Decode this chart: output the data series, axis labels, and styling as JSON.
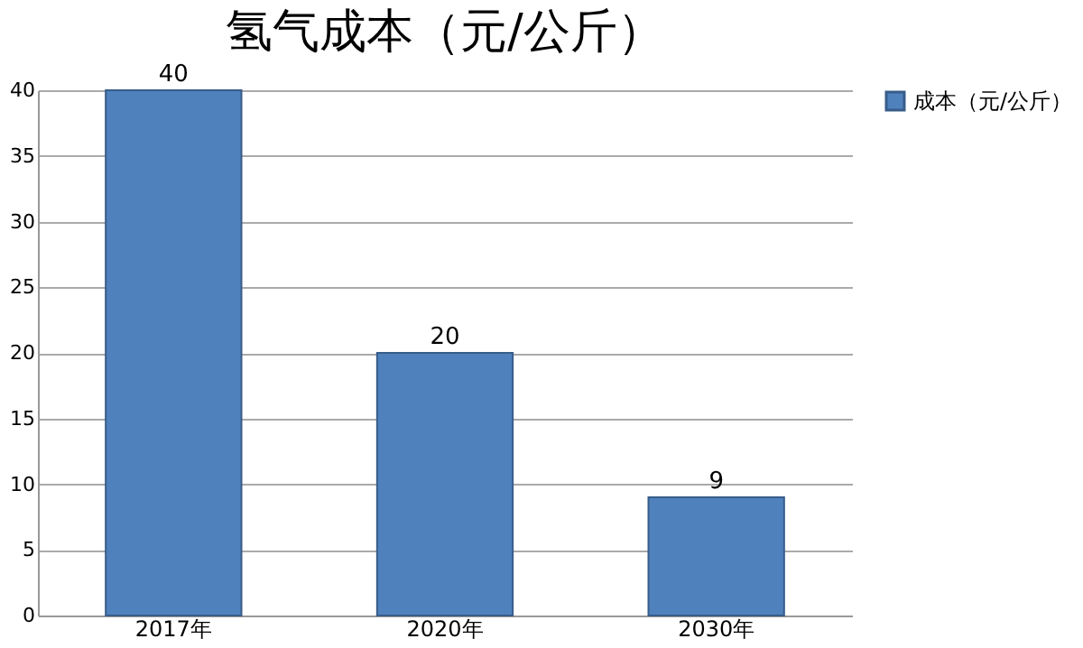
{
  "chart_data": {
    "type": "bar",
    "title": "氢气成本（元/公斤）",
    "categories": [
      "2017年",
      "2020年",
      "2030年"
    ],
    "series": [
      {
        "name": "成本（元/公斤）",
        "color": "#4f81bd",
        "values": [
          40,
          20,
          9
        ]
      }
    ],
    "ylim": [
      0,
      40
    ],
    "yticks": [
      0,
      5,
      10,
      15,
      20,
      25,
      30,
      35,
      40
    ],
    "grid": "y",
    "legend": "right",
    "data_labels": true
  }
}
